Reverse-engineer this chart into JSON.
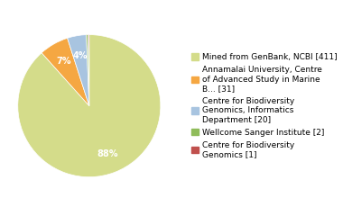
{
  "labels": [
    "Mined from GenBank, NCBI [411]",
    "Annamalai University, Centre\nof Advanced Study in Marine\nB... [31]",
    "Centre for Biodiversity\nGenomics, Informatics\nDepartment [20]",
    "Wellcome Sanger Institute [2]",
    "Centre for Biodiversity\nGenomics [1]"
  ],
  "values": [
    411,
    31,
    20,
    2,
    1
  ],
  "colors": [
    "#d4dc8a",
    "#f5a742",
    "#a8c4e0",
    "#8fbc5a",
    "#c0504d"
  ],
  "startangle": 90,
  "background_color": "#ffffff",
  "fontsize": 7.0,
  "legend_fontsize": 6.5
}
